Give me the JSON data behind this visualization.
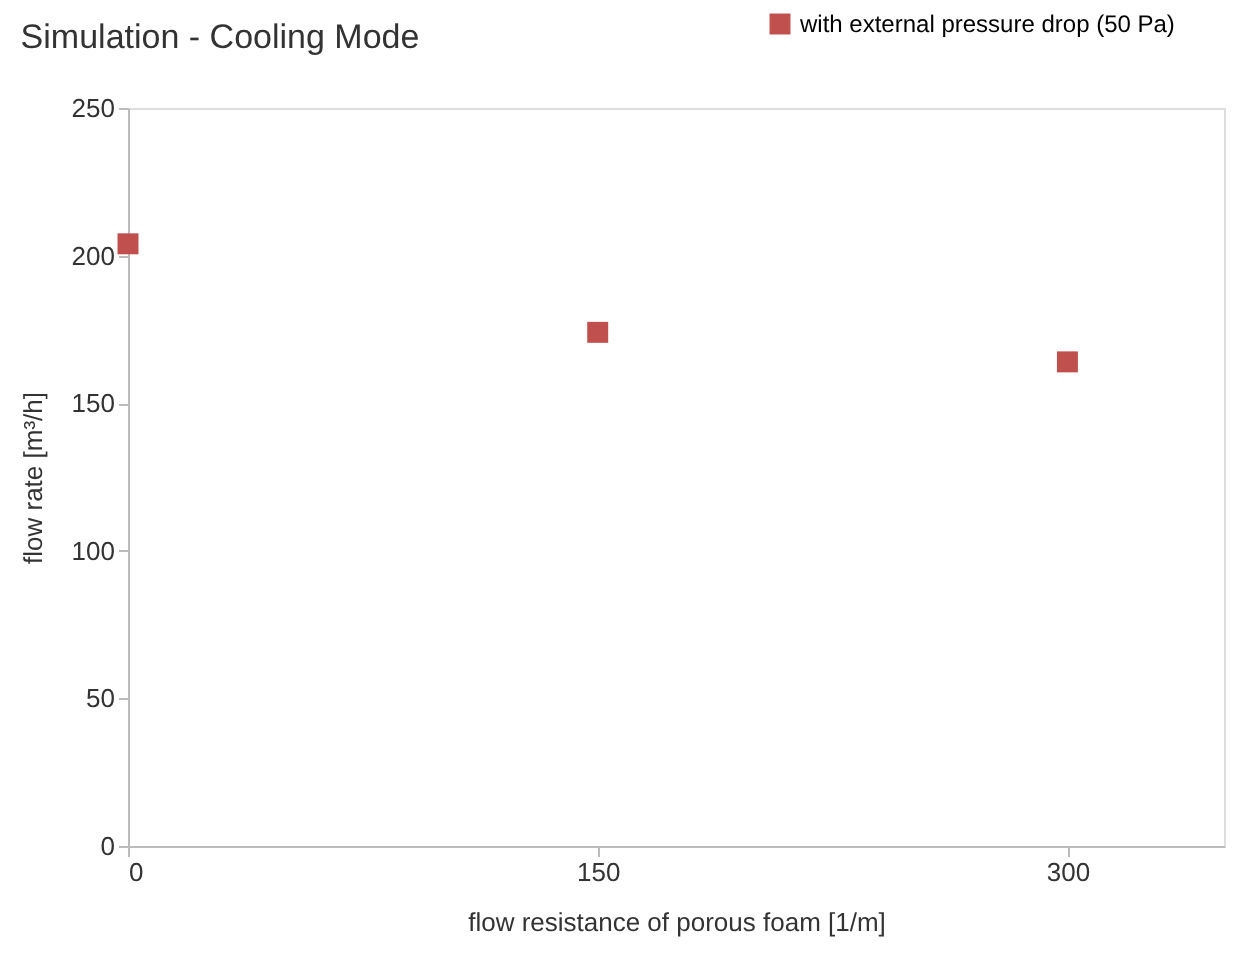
{
  "chart_data": {
    "type": "scatter",
    "title": "Simulation - Cooling Mode",
    "xlabel": "flow resistance of porous foam [1/m]",
    "ylabel": "flow rate [m³/h]",
    "x": [
      0,
      150,
      300
    ],
    "series": [
      {
        "name": "with external pressure drop (50 Pa)",
        "color": "#c0504d",
        "values": [
          204,
          174,
          164
        ]
      }
    ],
    "xlim": [
      0,
      350
    ],
    "xticks": [
      0,
      150,
      300
    ],
    "ylim": [
      0,
      250
    ],
    "yticks": [
      0,
      50,
      100,
      150,
      200,
      250
    ],
    "marker": "square",
    "grid": false,
    "legend": "top right"
  }
}
